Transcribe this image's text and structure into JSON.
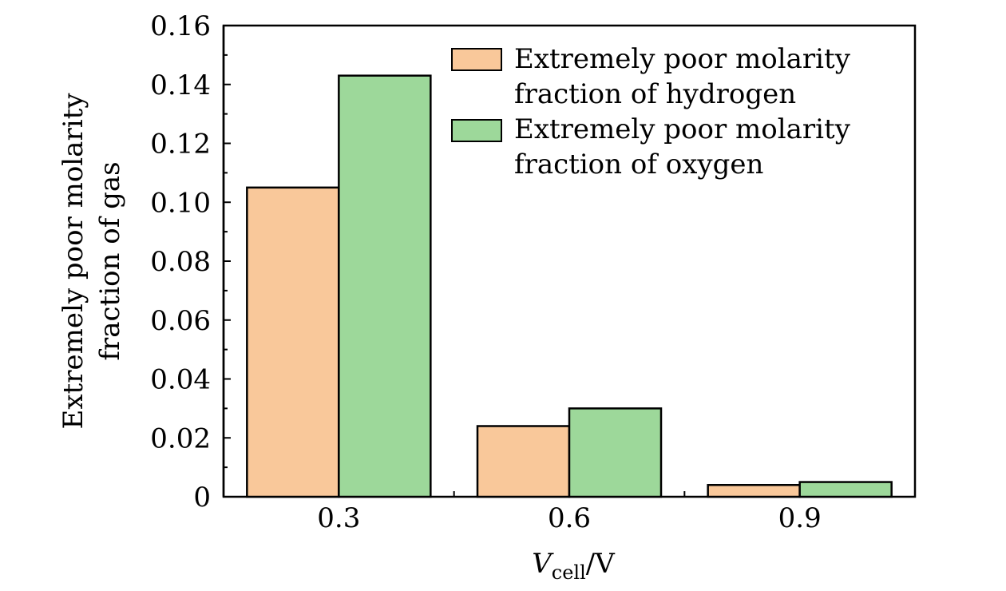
{
  "chart_data": {
    "type": "bar",
    "categories": [
      "0.3",
      "0.6",
      "0.9"
    ],
    "series": [
      {
        "name_lines": [
          "Extremely poor molarity",
          "fraction of hydrogen"
        ],
        "color": "#f9c89a",
        "values": [
          0.105,
          0.024,
          0.004
        ]
      },
      {
        "name_lines": [
          "Extremely poor molarity",
          "fraction of oxygen"
        ],
        "color": "#9dd89a",
        "values": [
          0.143,
          0.03,
          0.005
        ]
      }
    ],
    "ylim": [
      0,
      0.16
    ],
    "yticks": [
      "0",
      "0.02",
      "0.04",
      "0.06",
      "0.08",
      "0.10",
      "0.12",
      "0.14",
      "0.16"
    ],
    "ytick_values": [
      0,
      0.02,
      0.04,
      0.06,
      0.08,
      0.1,
      0.12,
      0.14,
      0.16
    ],
    "ylabel_lines": [
      "Extremely poor molarity",
      "fraction of gas"
    ],
    "xlabel": {
      "main": "V",
      "sub": "cell",
      "suffix": "/V"
    },
    "legend_position": "top-right"
  }
}
